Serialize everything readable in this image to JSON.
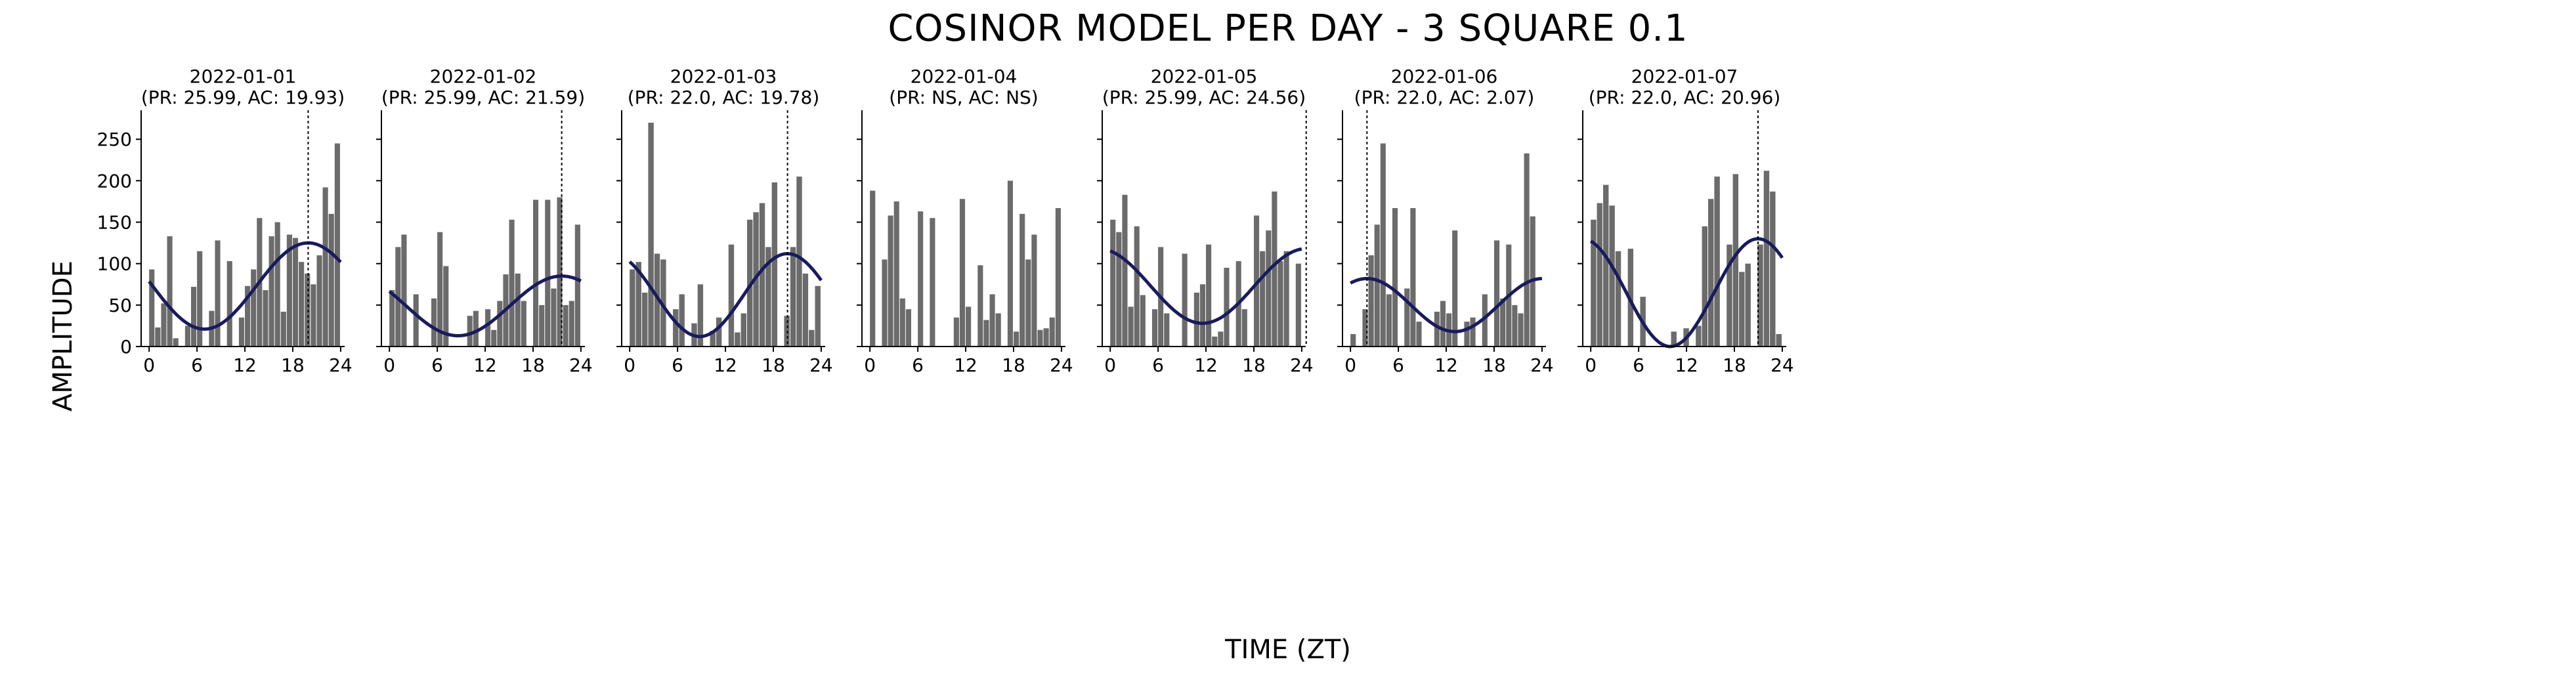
{
  "title": "COSINOR MODEL PER DAY - 3 SQUARE 0.1",
  "xlabel": "TIME (ZT)",
  "ylabel": "AMPLITUDE",
  "chart_data": {
    "type": "bar",
    "x_ticks": [
      "0",
      "6",
      "12",
      "18",
      "24"
    ],
    "y_ticks": [
      "0",
      "50",
      "100",
      "150",
      "200",
      "250"
    ],
    "xlim": [
      -1,
      24.5
    ],
    "ylim": [
      0,
      285
    ],
    "colors": {
      "bar": "#6b6b6b",
      "fit": "#1a1a5e",
      "axis": "#000000",
      "acrophase_line": "#000000"
    },
    "panels": [
      {
        "date": "2022-01-01",
        "subtitle": "(PR: 25.99, AC: 19.93)",
        "values": [
          93,
          23,
          52,
          133,
          10,
          0,
          25,
          72,
          115,
          0,
          43,
          128,
          0,
          103,
          0,
          35,
          73,
          93,
          155,
          68,
          133,
          150,
          42,
          135,
          131,
          102,
          88,
          75,
          110,
          192,
          160,
          245
        ],
        "fit": {
          "mesor": 73,
          "amplitude": 52,
          "period": 25.99,
          "acrophase": 19.93
        }
      },
      {
        "date": "2022-01-02",
        "subtitle": "(PR: 25.99, AC: 21.59)",
        "values": [
          68,
          120,
          135,
          0,
          63,
          0,
          0,
          58,
          138,
          97,
          0,
          0,
          0,
          37,
          43,
          0,
          45,
          20,
          55,
          87,
          153,
          88,
          55,
          0,
          177,
          50,
          177,
          70,
          180,
          50,
          55,
          147
        ],
        "fit": {
          "mesor": 49,
          "amplitude": 36,
          "period": 25.99,
          "acrophase": 21.59
        }
      },
      {
        "date": "2022-01-03",
        "subtitle": "(PR: 22.0, AC: 19.78)",
        "values": [
          93,
          102,
          65,
          270,
          112,
          105,
          0,
          45,
          63,
          0,
          28,
          75,
          0,
          19,
          35,
          0,
          123,
          17,
          40,
          153,
          162,
          173,
          120,
          198,
          0,
          37,
          120,
          205,
          88,
          20,
          73
        ],
        "fit": {
          "mesor": 62,
          "amplitude": 50,
          "period": 22.0,
          "acrophase": 19.78
        }
      },
      {
        "date": "2022-01-04",
        "subtitle": "(PR: NS, AC: NS)",
        "values": [
          188,
          0,
          105,
          158,
          175,
          58,
          45,
          0,
          163,
          0,
          155,
          0,
          0,
          0,
          35,
          178,
          48,
          0,
          98,
          32,
          63,
          40,
          0,
          200,
          18,
          160,
          105,
          135,
          20,
          22,
          35,
          167
        ],
        "fit": null
      },
      {
        "date": "2022-01-05",
        "subtitle": "(PR: 25.99, AC: 24.56)",
        "values": [
          153,
          138,
          183,
          48,
          145,
          62,
          0,
          45,
          120,
          40,
          0,
          0,
          112,
          0,
          65,
          75,
          123,
          12,
          18,
          95,
          0,
          103,
          45,
          0,
          158,
          115,
          140,
          187,
          103,
          115,
          0,
          100
        ],
        "fit": {
          "mesor": 73,
          "amplitude": 45,
          "period": 25.99,
          "acrophase": 24.56
        }
      },
      {
        "date": "2022-01-06",
        "subtitle": "(PR: 22.0, AC: 2.07)",
        "values": [
          15,
          0,
          45,
          110,
          147,
          245,
          63,
          167,
          0,
          70,
          167,
          30,
          0,
          0,
          42,
          55,
          40,
          140,
          0,
          30,
          35,
          0,
          63,
          0,
          128,
          58,
          123,
          50,
          40,
          233,
          157,
          0
        ],
        "fit": {
          "mesor": 50,
          "amplitude": 32,
          "period": 22.0,
          "acrophase": 2.07
        }
      },
      {
        "date": "2022-01-07",
        "subtitle": "(PR: 22.0, AC: 20.96)",
        "values": [
          153,
          173,
          195,
          170,
          115,
          0,
          118,
          0,
          60,
          0,
          0,
          0,
          0,
          18,
          0,
          22,
          0,
          25,
          145,
          178,
          205,
          0,
          123,
          208,
          90,
          100,
          0,
          123,
          212,
          187,
          15
        ],
        "fit": {
          "mesor": 65,
          "amplitude": 65,
          "period": 22.0,
          "acrophase": 20.96
        }
      }
    ]
  }
}
